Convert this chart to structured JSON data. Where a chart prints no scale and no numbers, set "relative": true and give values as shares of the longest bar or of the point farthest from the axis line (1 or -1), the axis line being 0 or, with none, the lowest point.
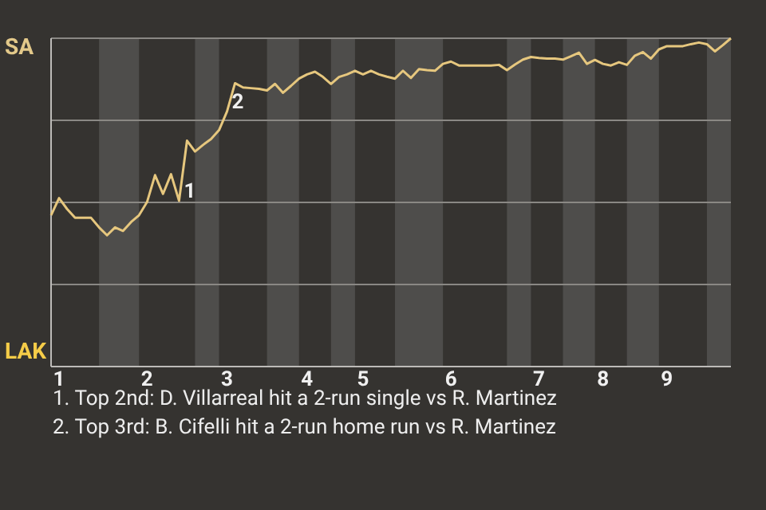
{
  "chart_data": {
    "type": "line",
    "relative": true,
    "categories": [
      null,
      "1",
      null,
      null,
      null,
      null,
      null,
      null,
      null,
      null,
      null,
      null,
      "2",
      null,
      null,
      null,
      null,
      null,
      null,
      null,
      null,
      null,
      "3",
      null,
      null,
      null,
      null,
      null,
      null,
      null,
      null,
      null,
      "4",
      null,
      null,
      null,
      null,
      null,
      null,
      "5",
      null,
      null,
      null,
      null,
      null,
      null,
      null,
      null,
      null,
      null,
      "6",
      null,
      null,
      null,
      null,
      null,
      null,
      null,
      null,
      null,
      null,
      "7",
      null,
      null,
      null,
      null,
      null,
      null,
      null,
      "8",
      null,
      null,
      null,
      null,
      null,
      null,
      null,
      "9",
      null,
      null,
      null,
      null,
      null,
      null,
      null,
      null
    ],
    "series": [
      {
        "color": "#e6c77e",
        "values": [
          0.461,
          0.513,
          0.48,
          0.453,
          0.453,
          0.453,
          0.424,
          0.4,
          0.424,
          0.413,
          0.44,
          0.461,
          0.501,
          0.583,
          0.526,
          0.586,
          0.505,
          0.688,
          0.655,
          0.675,
          0.693,
          0.72,
          0.777,
          0.863,
          0.85,
          0.848,
          0.846,
          0.841,
          0.861,
          0.834,
          0.855,
          0.877,
          0.89,
          0.898,
          0.882,
          0.861,
          0.882,
          0.89,
          0.901,
          0.89,
          0.901,
          0.89,
          0.883,
          0.877,
          0.901,
          0.879,
          0.906,
          0.903,
          0.901,
          0.922,
          0.929,
          0.917,
          0.917,
          0.917,
          0.917,
          0.917,
          0.919,
          0.903,
          0.92,
          0.935,
          0.943,
          0.94,
          0.938,
          0.938,
          0.935,
          0.945,
          0.956,
          0.922,
          0.934,
          0.922,
          0.917,
          0.927,
          0.919,
          0.947,
          0.958,
          0.938,
          0.966,
          0.976,
          0.976,
          0.976,
          0.982,
          0.987,
          0.982,
          0.96,
          0.979,
          1
        ]
      }
    ],
    "grid": "y",
    "marker": "none",
    "annotations": [
      "SA",
      "LAK",
      "1",
      "2",
      "1. Top 2nd: D. Villarreal hit a 2-run single vs R. Martinez",
      "2. Top 3rd: B. Cifelli hit a 2-run home run vs R. Martinez"
    ]
  }
}
